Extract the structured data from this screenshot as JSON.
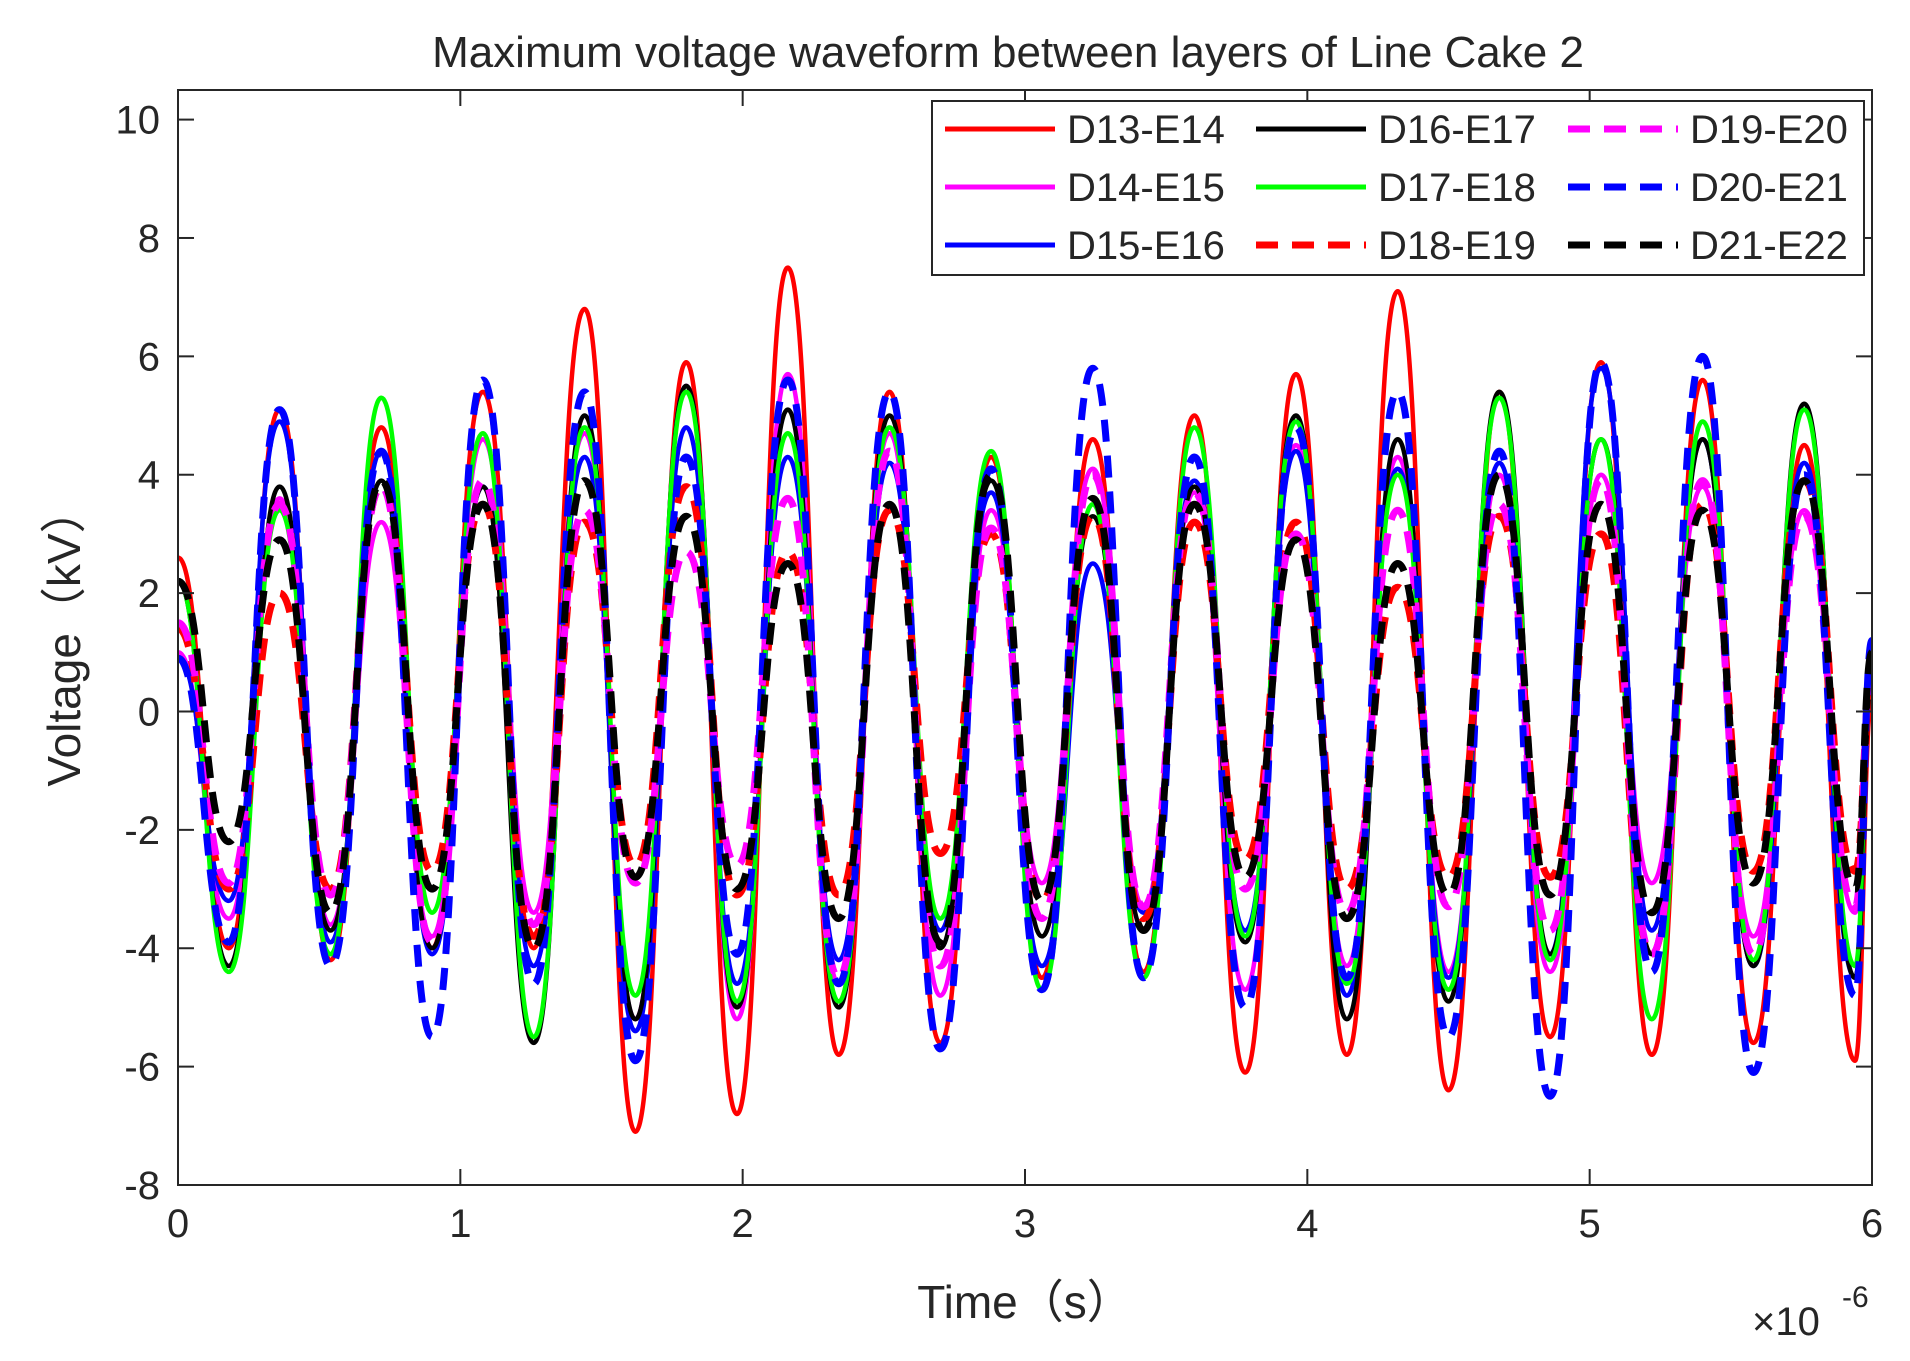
{
  "chart_data": {
    "type": "line",
    "title": "Maximum voltage waveform between layers of Line Cake 2",
    "xlabel": "Time（s）",
    "ylabel": "Voltage（kV）",
    "x_exponent_label": "×10",
    "x_exponent_power": "-6",
    "xlim": [
      0,
      6
    ],
    "ylim": [
      -8,
      10.5
    ],
    "xticks": [
      0,
      1,
      2,
      3,
      4,
      5,
      6
    ],
    "xtick_labels": [
      "0",
      "1",
      "2",
      "3",
      "4",
      "5",
      "6"
    ],
    "yticks": [
      -8,
      -6,
      -4,
      -2,
      0,
      2,
      4,
      6,
      8,
      10
    ],
    "ytick_labels": [
      "-8",
      "-6",
      "-4",
      "-2",
      "0",
      "2",
      "4",
      "6",
      "8",
      "10"
    ],
    "grid": false,
    "legend_position": "top-right",
    "x": [
      0,
      0.18,
      0.36,
      0.54,
      0.72,
      0.9,
      1.08,
      1.26,
      1.44,
      1.62,
      1.8,
      1.98,
      2.16,
      2.34,
      2.52,
      2.7,
      2.88,
      3.06,
      3.24,
      3.42,
      3.6,
      3.78,
      3.96,
      4.14,
      4.32,
      4.5,
      4.68,
      4.86,
      5.04,
      5.22,
      5.4,
      5.58,
      5.76,
      5.94,
      6.0
    ],
    "series": [
      {
        "name": "D13-E14",
        "color": "#ff0000",
        "style": "solid",
        "values": [
          2.6,
          -4.0,
          5.1,
          -4.2,
          4.8,
          -4.0,
          5.4,
          -4.0,
          6.8,
          -7.1,
          5.9,
          -6.8,
          7.5,
          -5.8,
          5.4,
          -5.6,
          4.3,
          -4.5,
          4.6,
          -4.4,
          5.0,
          -6.1,
          5.7,
          -5.8,
          7.1,
          -6.4,
          5.4,
          -5.5,
          5.9,
          -5.8,
          5.6,
          -5.6,
          4.5,
          -5.9,
          0.2
        ]
      },
      {
        "name": "D14-E15",
        "color": "#ff00ff",
        "style": "solid",
        "values": [
          1.0,
          -3.5,
          3.6,
          -3.6,
          3.2,
          -3.8,
          4.6,
          -3.4,
          4.7,
          -5.2,
          5.5,
          -5.2,
          5.7,
          -4.6,
          4.7,
          -4.8,
          3.4,
          -2.9,
          4.1,
          -3.3,
          3.7,
          -4.7,
          4.5,
          -4.3,
          4.3,
          -4.4,
          4.0,
          -4.4,
          4.0,
          -2.9,
          3.8,
          -3.8,
          3.4,
          -3.4,
          0.4
        ]
      },
      {
        "name": "D15-E16",
        "color": "#0000ff",
        "style": "solid",
        "values": [
          0.9,
          -3.2,
          4.9,
          -3.9,
          4.4,
          -4.1,
          3.8,
          -4.3,
          4.3,
          -5.4,
          4.8,
          -4.6,
          4.3,
          -4.2,
          4.2,
          -3.7,
          3.7,
          -4.3,
          2.5,
          -3.4,
          3.9,
          -3.7,
          4.4,
          -4.8,
          4.1,
          -4.5,
          4.2,
          -4.1,
          5.8,
          -3.7,
          4.6,
          -4.3,
          4.2,
          -4.5,
          1.0
        ]
      },
      {
        "name": "D16-E17",
        "color": "#000000",
        "style": "solid",
        "values": [
          2.2,
          -4.3,
          3.8,
          -3.7,
          3.9,
          -4.0,
          3.8,
          -5.6,
          5.0,
          -5.2,
          5.5,
          -5.0,
          5.1,
          -5.0,
          5.0,
          -4.0,
          3.9,
          -3.8,
          3.3,
          -3.7,
          3.8,
          -3.9,
          5.0,
          -5.2,
          4.6,
          -4.9,
          5.4,
          -4.1,
          4.6,
          -4.1,
          4.6,
          -4.3,
          5.2,
          -4.5,
          0.4
        ]
      },
      {
        "name": "D17-E18",
        "color": "#00ff00",
        "style": "solid",
        "values": [
          2.2,
          -4.4,
          3.4,
          -4.1,
          5.3,
          -3.4,
          4.7,
          -5.5,
          4.8,
          -4.8,
          5.4,
          -4.9,
          4.7,
          -4.9,
          4.8,
          -3.5,
          4.4,
          -4.7,
          3.5,
          -4.5,
          4.8,
          -3.8,
          4.9,
          -4.6,
          4.0,
          -4.7,
          5.3,
          -4.2,
          4.6,
          -5.2,
          4.9,
          -4.2,
          5.1,
          -4.3,
          1.0
        ]
      },
      {
        "name": "D18-E19",
        "color": "#ff0000",
        "style": "dashed",
        "values": [
          1.4,
          -3.0,
          2.0,
          -3.0,
          3.8,
          -2.7,
          3.5,
          -3.8,
          3.2,
          -2.6,
          3.8,
          -3.1,
          2.7,
          -3.1,
          3.4,
          -2.4,
          3.0,
          -3.2,
          3.3,
          -3.5,
          3.2,
          -2.5,
          3.2,
          -3.0,
          2.1,
          -2.8,
          3.3,
          -2.8,
          3.0,
          -4.1,
          3.5,
          -2.7,
          3.9,
          -2.7,
          0.6
        ]
      },
      {
        "name": "D19-E20",
        "color": "#ff00ff",
        "style": "dashed",
        "values": [
          1.5,
          -2.9,
          3.5,
          -3.1,
          3.8,
          -3.9,
          3.9,
          -3.6,
          3.4,
          -2.9,
          2.7,
          -2.6,
          3.6,
          -4.5,
          4.4,
          -4.3,
          3.1,
          -3.5,
          4.0,
          -3.3,
          3.7,
          -3.0,
          3.0,
          -3.4,
          3.4,
          -3.3,
          3.5,
          -3.7,
          3.9,
          -4.1,
          3.9,
          -4.1,
          3.3,
          -3.3,
          0.8
        ]
      },
      {
        "name": "D20-E21",
        "color": "#0000ff",
        "style": "dashed",
        "values": [
          0.9,
          -3.9,
          5.1,
          -4.3,
          4.4,
          -5.5,
          5.6,
          -4.6,
          5.4,
          -5.9,
          4.3,
          -4.1,
          5.6,
          -4.6,
          5.4,
          -5.7,
          4.1,
          -4.7,
          5.8,
          -4.5,
          4.3,
          -5.0,
          4.8,
          -4.5,
          5.4,
          -5.5,
          4.4,
          -6.5,
          5.9,
          -4.4,
          6.0,
          -6.1,
          4.0,
          -4.8,
          1.2
        ]
      },
      {
        "name": "D21-E22",
        "color": "#000000",
        "style": "dashed",
        "values": [
          2.2,
          -2.2,
          2.9,
          -3.4,
          3.9,
          -3.0,
          3.5,
          -4.0,
          3.9,
          -2.8,
          3.3,
          -3.0,
          2.5,
          -3.5,
          3.5,
          -3.9,
          4.0,
          -3.2,
          3.6,
          -3.7,
          3.5,
          -2.8,
          2.9,
          -3.5,
          2.5,
          -3.1,
          4.0,
          -3.1,
          3.5,
          -3.4,
          3.4,
          -2.9,
          3.9,
          -3.0,
          1.0
        ]
      }
    ]
  }
}
